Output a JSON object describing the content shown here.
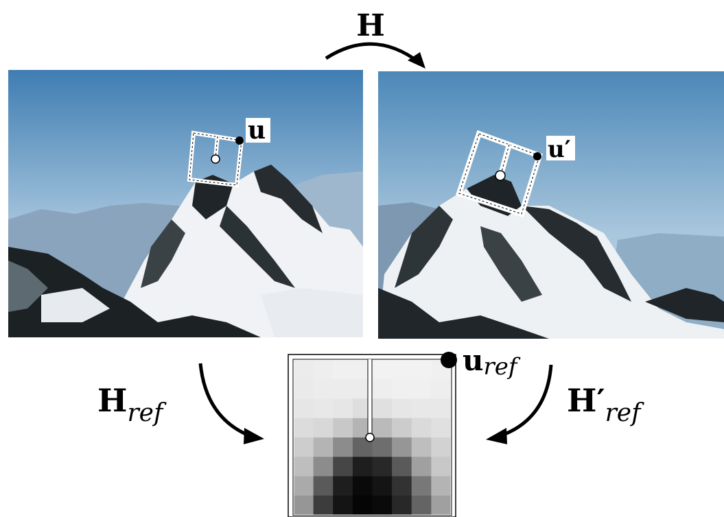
{
  "labels": {
    "homography": "H",
    "point_u": "u",
    "point_u_prime": "u′",
    "point_u_ref_main": "u",
    "point_u_ref_sub": "ref",
    "h_ref_main": "H",
    "h_ref_sub": "ref",
    "h_ref_prime_main": "H′",
    "h_ref_prime_sub": "ref"
  },
  "images": {
    "left_photo": "snowy-mountain-peak",
    "right_photo": "snowy-mountain-peak-warped"
  },
  "patch_grid": {
    "rows": 8,
    "cols": 8,
    "gray_levels": [
      [
        236,
        238,
        240,
        240,
        242,
        242,
        242,
        240
      ],
      [
        234,
        236,
        236,
        236,
        238,
        240,
        240,
        238
      ],
      [
        230,
        232,
        230,
        222,
        224,
        230,
        232,
        232
      ],
      [
        220,
        216,
        200,
        180,
        186,
        204,
        218,
        224
      ],
      [
        205,
        180,
        140,
        100,
        110,
        150,
        190,
        210
      ],
      [
        190,
        140,
        70,
        30,
        40,
        90,
        160,
        200
      ],
      [
        170,
        90,
        30,
        10,
        20,
        50,
        120,
        180
      ],
      [
        150,
        60,
        20,
        5,
        10,
        40,
        100,
        160
      ]
    ]
  },
  "colors": {
    "arrow": "#000000",
    "window_outline": "#ffffff",
    "sky_top": "#4f86b6",
    "sky_bottom": "#c9dbe8",
    "snow": "#f2f4f6",
    "rock": "#1e2326"
  }
}
